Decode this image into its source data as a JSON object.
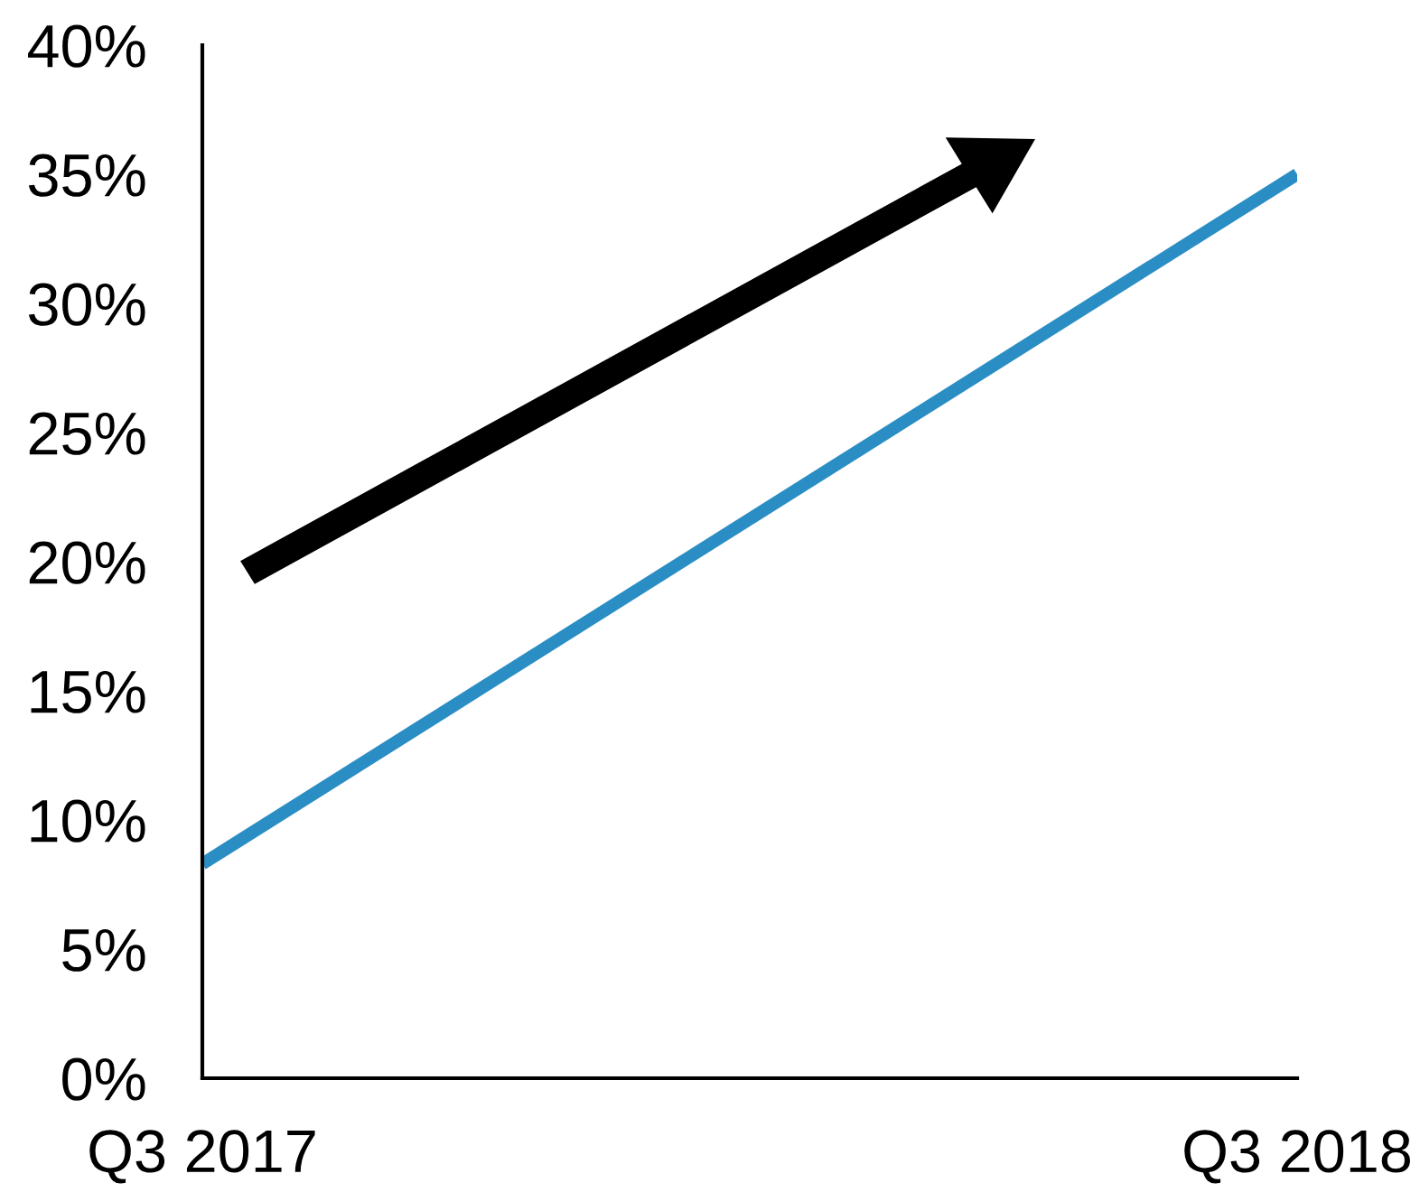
{
  "chart_data": {
    "type": "line",
    "categories": [
      "Q3 2017",
      "Q3 2018"
    ],
    "series": [
      {
        "color": "#2a8ec4",
        "values": [
          8.3,
          35.0
        ]
      }
    ],
    "ylim": [
      0,
      40
    ],
    "yticks": [
      {
        "value": 0,
        "label": "0%"
      },
      {
        "value": 5,
        "label": "5%"
      },
      {
        "value": 10,
        "label": "10%"
      },
      {
        "value": 15,
        "label": "15%"
      },
      {
        "value": 20,
        "label": "20%"
      },
      {
        "value": 25,
        "label": "25%"
      },
      {
        "value": 30,
        "label": "30%"
      },
      {
        "value": 35,
        "label": "35%"
      },
      {
        "value": 40,
        "label": "40%"
      }
    ],
    "grid": false,
    "legend": false,
    "marker": "none",
    "line_style": "solid"
  }
}
